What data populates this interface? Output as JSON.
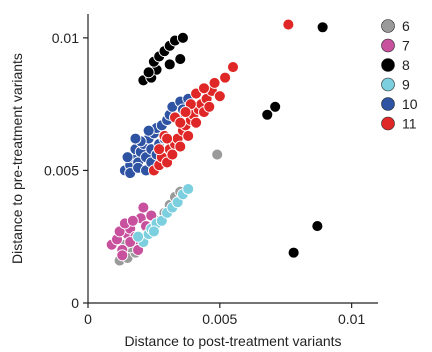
{
  "chart_data": {
    "type": "scatter",
    "title": "",
    "xlabel": "Distance to post-treatment variants",
    "ylabel": "Distance to pre-treatment variants",
    "xlim": [
      0,
      0.011
    ],
    "ylim": [
      0,
      0.0109
    ],
    "xticks": [
      0,
      0.005,
      0.01
    ],
    "xtick_labels": [
      "0",
      "0.005",
      "0.01"
    ],
    "yticks": [
      0,
      0.005,
      0.01
    ],
    "ytick_labels": [
      "0",
      "0.005",
      "0.01"
    ],
    "grid": false,
    "legend_position": "right",
    "series": [
      {
        "name": "6",
        "color": "#9a9a9a",
        "points": [
          [
            0.0012,
            0.0016
          ],
          [
            0.0015,
            0.0017
          ],
          [
            0.0013,
            0.0019
          ],
          [
            0.0018,
            0.0019
          ],
          [
            0.0016,
            0.0021
          ],
          [
            0.0014,
            0.0022
          ],
          [
            0.002,
            0.0023
          ],
          [
            0.0017,
            0.0024
          ],
          [
            0.0023,
            0.0028
          ],
          [
            0.0026,
            0.0031
          ],
          [
            0.0029,
            0.0034
          ],
          [
            0.0031,
            0.0037
          ],
          [
            0.0033,
            0.004
          ],
          [
            0.0035,
            0.0042
          ],
          [
            0.0049,
            0.0056
          ]
        ]
      },
      {
        "name": "7",
        "color": "#c8519e",
        "points": [
          [
            0.0009,
            0.0022
          ],
          [
            0.0011,
            0.0024
          ],
          [
            0.0013,
            0.002
          ],
          [
            0.0015,
            0.0026
          ],
          [
            0.0012,
            0.0027
          ],
          [
            0.0016,
            0.0028
          ],
          [
            0.0019,
            0.0022
          ],
          [
            0.0018,
            0.0025
          ],
          [
            0.0014,
            0.003
          ],
          [
            0.002,
            0.0032
          ],
          [
            0.0022,
            0.0029
          ],
          [
            0.0019,
            0.002
          ],
          [
            0.0017,
            0.0031
          ],
          [
            0.0021,
            0.0036
          ],
          [
            0.0024,
            0.0033
          ],
          [
            0.0013,
            0.0018
          ],
          [
            0.0016,
            0.0023
          ]
        ]
      },
      {
        "name": "8",
        "color": "#000000",
        "points": [
          [
            0.0021,
            0.0084
          ],
          [
            0.0023,
            0.0087
          ],
          [
            0.0024,
            0.0085
          ],
          [
            0.0026,
            0.0088
          ],
          [
            0.0025,
            0.0091
          ],
          [
            0.0027,
            0.0093
          ],
          [
            0.0029,
            0.0095
          ],
          [
            0.0031,
            0.0097
          ],
          [
            0.0033,
            0.0099
          ],
          [
            0.0036,
            0.01
          ],
          [
            0.0035,
            0.0092
          ],
          [
            0.0031,
            0.009
          ],
          [
            0.0023,
            0.0087
          ],
          [
            0.0068,
            0.0071
          ],
          [
            0.0071,
            0.0074
          ],
          [
            0.0076,
            0.0105
          ],
          [
            0.0089,
            0.0104
          ],
          [
            0.0087,
            0.0029
          ],
          [
            0.0078,
            0.0019
          ]
        ]
      },
      {
        "name": "9",
        "color": "#7ccfde",
        "points": [
          [
            0.0021,
            0.0023
          ],
          [
            0.0023,
            0.0026
          ],
          [
            0.0024,
            0.0028
          ],
          [
            0.0026,
            0.003
          ],
          [
            0.0028,
            0.0031
          ],
          [
            0.003,
            0.0034
          ],
          [
            0.0032,
            0.0036
          ],
          [
            0.0034,
            0.0038
          ],
          [
            0.0036,
            0.0041
          ],
          [
            0.0038,
            0.0043
          ],
          [
            0.0019,
            0.0025
          ],
          [
            0.0025,
            0.0027
          ]
        ]
      },
      {
        "name": "10",
        "color": "#2f53a3",
        "points": [
          [
            0.0014,
            0.005
          ],
          [
            0.0016,
            0.0052
          ],
          [
            0.0017,
            0.0055
          ],
          [
            0.0019,
            0.0053
          ],
          [
            0.0018,
            0.0058
          ],
          [
            0.002,
            0.0057
          ],
          [
            0.0021,
            0.006
          ],
          [
            0.0022,
            0.0055
          ],
          [
            0.0023,
            0.0062
          ],
          [
            0.0024,
            0.0058
          ],
          [
            0.0025,
            0.0064
          ],
          [
            0.0026,
            0.0066
          ],
          [
            0.0027,
            0.006
          ],
          [
            0.0028,
            0.0067
          ],
          [
            0.0029,
            0.0062
          ],
          [
            0.003,
            0.0069
          ],
          [
            0.0031,
            0.0071
          ],
          [
            0.0032,
            0.0074
          ],
          [
            0.0034,
            0.007
          ],
          [
            0.0035,
            0.0076
          ],
          [
            0.0036,
            0.0073
          ],
          [
            0.0038,
            0.0077
          ],
          [
            0.0016,
            0.0049
          ],
          [
            0.0019,
            0.0051
          ],
          [
            0.0022,
            0.005
          ],
          [
            0.0024,
            0.0053
          ],
          [
            0.0026,
            0.0056
          ],
          [
            0.0028,
            0.0057
          ],
          [
            0.002,
            0.0061
          ],
          [
            0.0023,
            0.0065
          ],
          [
            0.0015,
            0.0055
          ],
          [
            0.0018,
            0.0062
          ]
        ]
      },
      {
        "name": "11",
        "color": "#e02727",
        "points": [
          [
            0.0025,
            0.005
          ],
          [
            0.0027,
            0.0052
          ],
          [
            0.0028,
            0.0055
          ],
          [
            0.003,
            0.0053
          ],
          [
            0.0031,
            0.0058
          ],
          [
            0.0032,
            0.0056
          ],
          [
            0.0033,
            0.006
          ],
          [
            0.0034,
            0.0062
          ],
          [
            0.0035,
            0.0059
          ],
          [
            0.0036,
            0.0065
          ],
          [
            0.0037,
            0.0067
          ],
          [
            0.0038,
            0.0063
          ],
          [
            0.0039,
            0.0069
          ],
          [
            0.004,
            0.0071
          ],
          [
            0.0041,
            0.0068
          ],
          [
            0.0042,
            0.0073
          ],
          [
            0.0043,
            0.0075
          ],
          [
            0.0044,
            0.0072
          ],
          [
            0.0045,
            0.0077
          ],
          [
            0.0046,
            0.0074
          ],
          [
            0.0047,
            0.008
          ],
          [
            0.0048,
            0.0083
          ],
          [
            0.005,
            0.0078
          ],
          [
            0.0052,
            0.0085
          ],
          [
            0.0055,
            0.0089
          ],
          [
            0.0029,
            0.0063
          ],
          [
            0.0033,
            0.007
          ],
          [
            0.0035,
            0.0068
          ],
          [
            0.0039,
            0.0075
          ],
          [
            0.0041,
            0.0079
          ],
          [
            0.0044,
            0.0081
          ],
          [
            0.0027,
            0.0058
          ],
          [
            0.003,
            0.0062
          ],
          [
            0.0037,
            0.0072
          ],
          [
            0.0076,
            0.0105
          ]
        ]
      }
    ]
  }
}
